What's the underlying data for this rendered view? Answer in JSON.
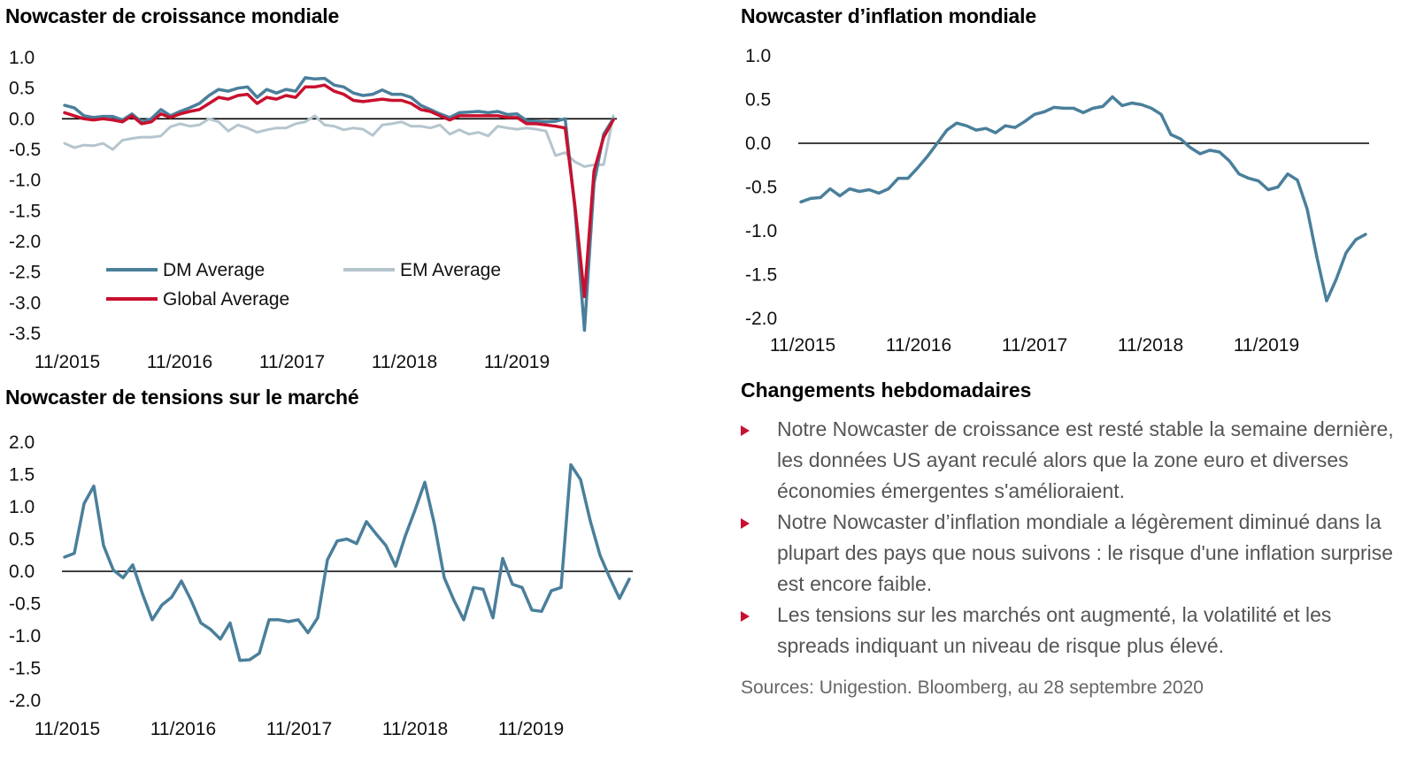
{
  "colors": {
    "dm": "#4a7f9b",
    "em": "#b4c5cd",
    "global": "#c8102e",
    "bullet": "#c8102e"
  },
  "x_ticks": [
    "11/2015",
    "11/2016",
    "11/2017",
    "11/2018",
    "11/2019"
  ],
  "chart_data": [
    {
      "type": "line",
      "title": "Nowcaster de croissance mondiale",
      "ylim": [
        -3.5,
        1.0
      ],
      "yticks": [
        "1.0",
        "0.5",
        "0.0",
        "-0.5",
        "-1.0",
        "-1.5",
        "-2.0",
        "-2.5",
        "-3.0",
        "-3.5"
      ],
      "xlabel": "",
      "ylabel": "",
      "x_ticks": [
        "11/2015",
        "11/2016",
        "11/2017",
        "11/2018",
        "11/2019"
      ],
      "legend": {
        "placement": "bottom-left",
        "entries": [
          "DM Average",
          "EM Average",
          "Global Average"
        ]
      },
      "series": [
        {
          "name": "DM Average",
          "values": [
            0.22,
            0.18,
            0.05,
            0.02,
            0.04,
            0.04,
            -0.02,
            0.08,
            -0.05,
            0.0,
            0.15,
            0.05,
            0.12,
            0.18,
            0.25,
            0.38,
            0.48,
            0.45,
            0.5,
            0.52,
            0.35,
            0.48,
            0.42,
            0.48,
            0.45,
            0.67,
            0.65,
            0.66,
            0.55,
            0.52,
            0.42,
            0.38,
            0.4,
            0.47,
            0.4,
            0.4,
            0.35,
            0.22,
            0.15,
            0.08,
            0.02,
            0.1,
            0.11,
            0.12,
            0.1,
            0.12,
            0.07,
            0.08,
            -0.03,
            -0.04,
            -0.05,
            -0.04,
            0.0,
            -1.45,
            -3.45,
            -1.05,
            -0.25,
            0.0
          ]
        },
        {
          "name": "EM Average",
          "values": [
            -0.4,
            -0.47,
            -0.43,
            -0.44,
            -0.4,
            -0.5,
            -0.35,
            -0.32,
            -0.3,
            -0.3,
            -0.28,
            -0.13,
            -0.08,
            -0.12,
            -0.1,
            0.0,
            -0.05,
            -0.2,
            -0.1,
            -0.15,
            -0.22,
            -0.18,
            -0.15,
            -0.15,
            -0.08,
            -0.05,
            0.05,
            -0.1,
            -0.12,
            -0.18,
            -0.15,
            -0.17,
            -0.27,
            -0.1,
            -0.08,
            -0.05,
            -0.12,
            -0.12,
            -0.15,
            -0.1,
            -0.25,
            -0.18,
            -0.25,
            -0.22,
            -0.28,
            -0.12,
            -0.15,
            -0.17,
            -0.15,
            -0.17,
            -0.2,
            -0.6,
            -0.55,
            -0.7,
            -0.78,
            -0.75,
            -0.75,
            0.05
          ]
        },
        {
          "name": "Global Average",
          "values": [
            0.1,
            0.05,
            0.0,
            -0.02,
            0.0,
            -0.02,
            -0.05,
            0.05,
            -0.08,
            -0.05,
            0.08,
            0.02,
            0.08,
            0.12,
            0.15,
            0.25,
            0.35,
            0.32,
            0.38,
            0.4,
            0.25,
            0.35,
            0.32,
            0.38,
            0.35,
            0.52,
            0.52,
            0.55,
            0.45,
            0.4,
            0.3,
            0.28,
            0.3,
            0.32,
            0.3,
            0.3,
            0.25,
            0.15,
            0.12,
            0.05,
            -0.02,
            0.05,
            0.05,
            0.05,
            0.05,
            0.05,
            0.02,
            0.02,
            -0.08,
            -0.08,
            -0.1,
            -0.12,
            -0.15,
            -1.4,
            -2.9,
            -0.85,
            -0.3,
            -0.02
          ]
        }
      ]
    },
    {
      "type": "line",
      "title": "Nowcaster d’inflation mondiale",
      "ylim": [
        -2.0,
        1.0
      ],
      "yticks": [
        "1.0",
        "0.5",
        "0.0",
        "-0.5",
        "-1.0",
        "-1.5",
        "-2.0"
      ],
      "xlabel": "",
      "ylabel": "",
      "x_ticks": [
        "11/2015",
        "11/2016",
        "11/2017",
        "11/2018",
        "11/2019"
      ],
      "series": [
        {
          "name": "",
          "values": [
            -0.67,
            -0.63,
            -0.62,
            -0.52,
            -0.6,
            -0.52,
            -0.55,
            -0.53,
            -0.57,
            -0.52,
            -0.4,
            -0.4,
            -0.28,
            -0.15,
            0.0,
            0.15,
            0.23,
            0.2,
            0.15,
            0.17,
            0.12,
            0.2,
            0.18,
            0.25,
            0.33,
            0.36,
            0.41,
            0.4,
            0.4,
            0.35,
            0.4,
            0.42,
            0.53,
            0.43,
            0.46,
            0.44,
            0.4,
            0.33,
            0.1,
            0.05,
            -0.05,
            -0.12,
            -0.08,
            -0.1,
            -0.2,
            -0.35,
            -0.4,
            -0.43,
            -0.53,
            -0.5,
            -0.35,
            -0.42,
            -0.75,
            -1.3,
            -1.8,
            -1.55,
            -1.25,
            -1.1,
            -1.04
          ]
        }
      ]
    },
    {
      "type": "line",
      "title": "Nowcaster de tensions sur le marché",
      "ylim": [
        -2.0,
        2.0
      ],
      "yticks": [
        "2.0",
        "1.5",
        "1.0",
        "0.5",
        "0.0",
        "-0.5",
        "-1.0",
        "-1.5",
        "-2.0"
      ],
      "xlabel": "",
      "ylabel": "",
      "x_ticks": [
        "11/2015",
        "11/2016",
        "11/2017",
        "11/2018",
        "11/2019"
      ],
      "series": [
        {
          "name": "",
          "values": [
            0.22,
            0.28,
            1.05,
            1.32,
            0.4,
            0.02,
            -0.1,
            0.1,
            -0.35,
            -0.75,
            -0.52,
            -0.4,
            -0.15,
            -0.45,
            -0.8,
            -0.9,
            -1.05,
            -0.8,
            -1.38,
            -1.37,
            -1.27,
            -0.75,
            -0.75,
            -0.78,
            -0.75,
            -0.95,
            -0.72,
            0.18,
            0.47,
            0.5,
            0.43,
            0.77,
            0.58,
            0.4,
            0.08,
            0.55,
            0.95,
            1.38,
            0.72,
            -0.1,
            -0.45,
            -0.75,
            -0.25,
            -0.28,
            -0.72,
            0.2,
            -0.2,
            -0.25,
            -0.6,
            -0.62,
            -0.3,
            -0.25,
            1.65,
            1.42,
            0.78,
            0.25,
            -0.1,
            -0.42,
            -0.12
          ]
        }
      ]
    }
  ],
  "titles": {
    "growth": "Nowcaster de croissance mondiale",
    "inflation": "Nowcaster d’inflation mondiale",
    "stress": "Nowcaster de tensions sur le marché"
  },
  "legend_labels": {
    "dm": "DM Average",
    "em": "EM Average",
    "global": "Global Average"
  },
  "weekly": {
    "title": "Changements hebdomadaires",
    "bullets": [
      "Notre Nowcaster de croissance est resté stable la semaine dernière, les données US ayant reculé alors que la zone euro et diverses économies émergentes s'amélioraient.",
      "Notre Nowcaster d’inflation mondiale a légèrement diminué dans la plupart des pays que nous suivons : le risque d'une inflation surprise est encore faible.",
      "Les tensions sur les marchés ont augmenté, la volatilité et les spreads indiquant un niveau de risque plus élevé."
    ],
    "sources": "Sources: Unigestion. Bloomberg, au 28 septembre 2020"
  }
}
